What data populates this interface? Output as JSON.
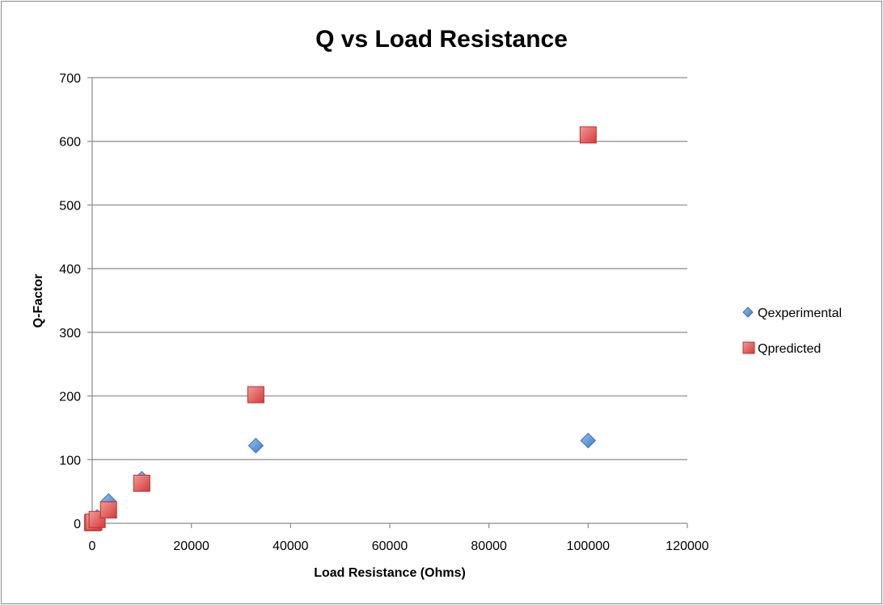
{
  "chart_data": {
    "type": "scatter",
    "title": "Q vs Load Resistance",
    "xlabel": "Load Resistance (Ohms)",
    "ylabel": "Q-Factor",
    "xlim": [
      0,
      120000
    ],
    "ylim": [
      0,
      700
    ],
    "x_ticks": [
      "0",
      "20000",
      "40000",
      "60000",
      "80000",
      "100000",
      "120000"
    ],
    "y_ticks": [
      "0",
      "100",
      "200",
      "300",
      "400",
      "500",
      "600",
      "700"
    ],
    "grid": "horizontal",
    "legend_position": "right",
    "series": [
      {
        "name": "Qexperimental",
        "marker": "diamond",
        "color": "#5b8fd6",
        "points": [
          {
            "x": 100,
            "y": 1
          },
          {
            "x": 330,
            "y": 3
          },
          {
            "x": 1000,
            "y": 10
          },
          {
            "x": 3300,
            "y": 35
          },
          {
            "x": 10000,
            "y": 70
          },
          {
            "x": 33000,
            "y": 122
          },
          {
            "x": 100000,
            "y": 130
          }
        ]
      },
      {
        "name": "Qpredicted",
        "marker": "square",
        "color": "#e0514f",
        "points": [
          {
            "x": 100,
            "y": 1
          },
          {
            "x": 330,
            "y": 2
          },
          {
            "x": 1000,
            "y": 6
          },
          {
            "x": 3300,
            "y": 21
          },
          {
            "x": 10000,
            "y": 63
          },
          {
            "x": 33000,
            "y": 202
          },
          {
            "x": 100000,
            "y": 610
          }
        ]
      }
    ]
  }
}
